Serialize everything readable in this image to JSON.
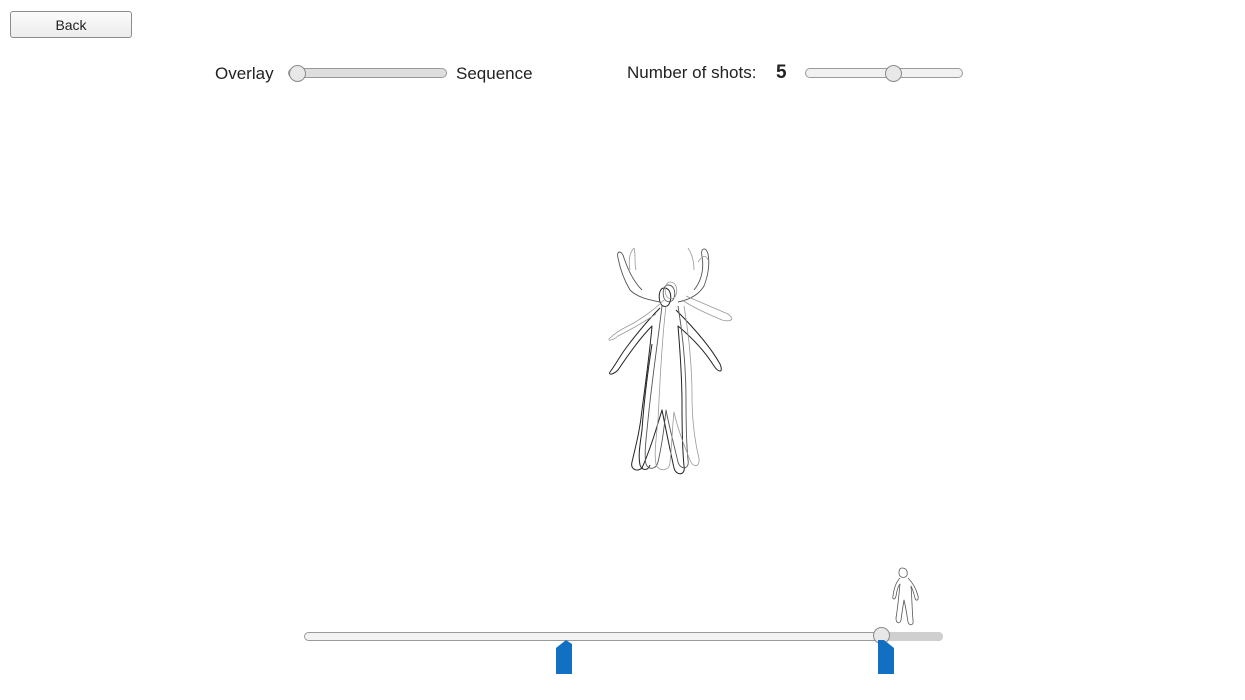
{
  "toolbar": {
    "back_label": "Back"
  },
  "display_mode": {
    "left_label": "Overlay",
    "right_label": "Sequence",
    "value": 0
  },
  "shots": {
    "label": "Number of shots:",
    "value": "5",
    "slider_value": 0.57
  },
  "timeline": {
    "position": 0.9,
    "marker_positions": [
      0.41,
      0.91
    ],
    "marker_color": "#1170c2"
  },
  "icons": {
    "figure_overlay": "human-figure-overlay-icon",
    "thumb_figure": "human-figure-thumbnail-icon"
  }
}
